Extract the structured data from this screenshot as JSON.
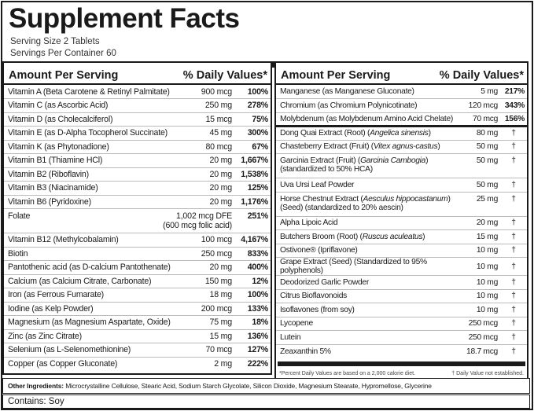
{
  "title": "Supplement Facts",
  "serving_size": "Serving Size 2 Tablets",
  "servings_per_container": "Servings Per Container 60",
  "header": {
    "amount": "Amount Per Serving",
    "dv": "% Daily Values*"
  },
  "left_rows": [
    {
      "name": "Vitamin A (Beta Carotene & Retinyl Palmitate)",
      "amount": "900 mcg",
      "dv": "100%"
    },
    {
      "name": "Vitamin C (as Ascorbic Acid)",
      "amount": "250 mg",
      "dv": "278%"
    },
    {
      "name": "Vitamin D (as Cholecalciferol)",
      "amount": "15 mcg",
      "dv": "75%"
    },
    {
      "name": "Vitamin E (as D-Alpha Tocopherol Succinate)",
      "amount": "45 mg",
      "dv": "300%"
    },
    {
      "name": "Vitamin K (as Phytonadione)",
      "amount": "80 mcg",
      "dv": "67%"
    },
    {
      "name": "Vitamin B1 (Thiamine HCl)",
      "amount": "20 mg",
      "dv": "1,667%"
    },
    {
      "name": "Vitamin B2 (Riboflavin)",
      "amount": "20 mg",
      "dv": "1,538%"
    },
    {
      "name": "Vitamin B3 (Niacinamide)",
      "amount": "20 mg",
      "dv": "125%"
    },
    {
      "name": "Vitamin B6 (Pyridoxine)",
      "amount": "20 mg",
      "dv": "1,176%"
    },
    {
      "name": "Folate",
      "amount": "1,002 mcg DFE",
      "amount2": "(600 mcg folic acid)",
      "dv": "251%"
    },
    {
      "name": "Vitamin B12 (Methylcobalamin)",
      "amount": "100 mcg",
      "dv": "4,167%"
    },
    {
      "name": "Biotin",
      "amount": "250 mcg",
      "dv": "833%"
    },
    {
      "name": "Pantothenic acid (as D-calcium Pantothenate)",
      "amount": "20 mg",
      "dv": "400%"
    },
    {
      "name": "Calcium (as Calcium Citrate, Carbonate)",
      "amount": "150 mg",
      "dv": "12%"
    },
    {
      "name": "Iron (as Ferrous Fumarate)",
      "amount": "18 mg",
      "dv": "100%"
    },
    {
      "name": "Iodine (as Kelp Powder)",
      "amount": "200 mcg",
      "dv": "133%"
    },
    {
      "name": "Magnesium (as Magnesium Aspartate, Oxide)",
      "amount": "75 mg",
      "dv": "18%"
    },
    {
      "name": "Zinc (as Zinc Citrate)",
      "amount": "15 mg",
      "dv": "136%"
    },
    {
      "name": "Selenium (as L-Selenomethionine)",
      "amount": "70 mcg",
      "dv": "127%"
    },
    {
      "name": "Copper (as Copper Gluconate)",
      "amount": "2 mg",
      "dv": "222%"
    }
  ],
  "right_minerals": [
    {
      "name": "Manganese (as Manganese Gluconate)",
      "amount": "5 mg",
      "dv": "217%"
    },
    {
      "name": "Chromium (as Chromium Polynicotinate)",
      "amount": "120 mcg",
      "dv": "343%"
    },
    {
      "name": "Molybdenum (as Molybdenum Amino Acid Chelate)",
      "amount": "70 mcg",
      "dv": "156%"
    }
  ],
  "right_rows": [
    {
      "name": "Dong Quai Extract (Root) (",
      "italic": "Angelica sinensis",
      "after": ")",
      "amount": "80 mg",
      "dv": "†"
    },
    {
      "name": "Chasteberry Extract (Fruit) (",
      "italic": "Vitex agnus-castus",
      "after": ")",
      "amount": "50 mg",
      "dv": "†"
    },
    {
      "name": "Garcinia Extract (Fruit) (",
      "italic": "Garcinia Cambogia",
      "after": ")",
      "line2": "(standardized to 50% HCA)",
      "amount": "50 mg",
      "dv": "†"
    },
    {
      "name": "Uva Ursi Leaf Powder",
      "amount": "50 mg",
      "dv": "†"
    },
    {
      "name": "Horse Chestnut Extract (",
      "italic": "Aesculus hippocastanum",
      "after": ")",
      "line2": "(Seed) (standardized to 20% aescin)",
      "amount": "25 mg",
      "dv": "†"
    },
    {
      "name": "Alpha Lipoic Acid",
      "amount": "20 mg",
      "dv": "†"
    },
    {
      "name": "Butchers Broom (Root) (",
      "italic": "Ruscus aculeatus",
      "after": ")",
      "amount": "15 mg",
      "dv": "†"
    },
    {
      "name": "Ostivone® (Ipriflavone)",
      "amount": "10 mg",
      "dv": "†"
    },
    {
      "name": "Grape Extract (Seed) (Standardized to 95% polyphenols)",
      "amount": "10 mg",
      "dv": "†"
    },
    {
      "name": "Deodorized Garlic Powder",
      "amount": "10 mg",
      "dv": "†"
    },
    {
      "name": "Citrus Bioflavonoids",
      "amount": "10 mg",
      "dv": "†"
    },
    {
      "name": "Isoflavones (from soy)",
      "amount": "10 mg",
      "dv": "†"
    },
    {
      "name": "Lycopene",
      "amount": "250 mcg",
      "dv": "†"
    },
    {
      "name": "Lutein",
      "amount": "250 mcg",
      "dv": "†"
    },
    {
      "name": "Zeaxanthin 5%",
      "amount": "18.7 mcg",
      "dv": "†"
    }
  ],
  "footnote_left": "*Percent Daily Values are based on a 2,000 calorie diet.",
  "footnote_right": "† Daily Value not established.",
  "other_ingredients_label": "Other Ingredients:",
  "other_ingredients": "Microcrystalline Cellulose, Stearic Acid, Sodium Starch Glycolate, Silicon Dioxide, Magnesium Stearate, Hypromellose, Glycerine",
  "contains": "Contains: Soy"
}
